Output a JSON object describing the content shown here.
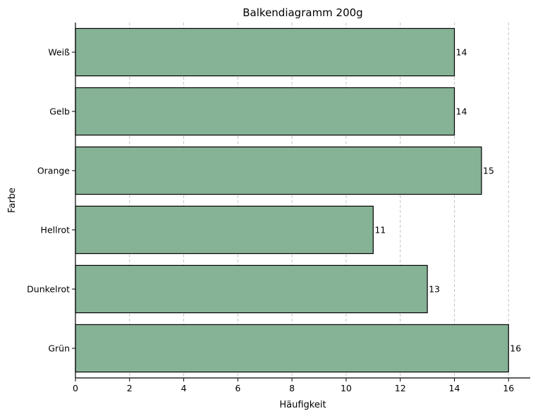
{
  "chart_data": {
    "type": "bar",
    "orientation": "horizontal",
    "title": "Balkendiagramm 200g",
    "xlabel": "Häufigkeit",
    "ylabel": "Farbe",
    "categories": [
      "Weiß",
      "Gelb",
      "Orange",
      "Hellrot",
      "Dunkelrot",
      "Grün"
    ],
    "values": [
      14,
      14,
      15,
      11,
      13,
      16
    ],
    "xlim": [
      0,
      16.8
    ],
    "xticks": [
      0,
      2,
      4,
      6,
      8,
      10,
      12,
      14,
      16
    ],
    "grid": "x, dashed",
    "data_labels": true,
    "bar_color": "#86b295",
    "edge_color": "#000000",
    "legend": "none"
  }
}
